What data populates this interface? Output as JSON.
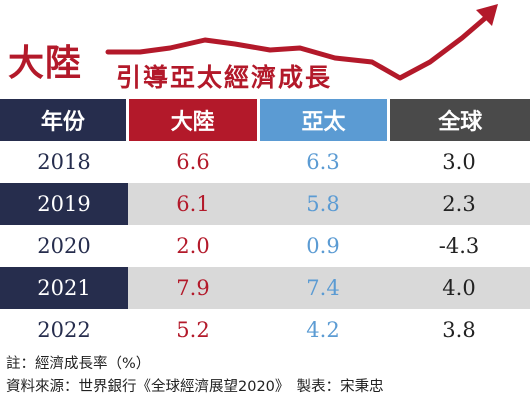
{
  "header": {
    "title_main": "大陸",
    "title_sub": "引導亞太經濟成長",
    "accent_color": "#b3192a",
    "arrow_icon": "trend-up-arrow-icon"
  },
  "chart_data": {
    "type": "table",
    "columns": [
      "年份",
      "大陸",
      "亞太",
      "全球"
    ],
    "column_colors": [
      "#262d4d",
      "#b3192a",
      "#5b9bd3",
      "#4a4a4a"
    ],
    "rows": [
      [
        "2018",
        "6.6",
        "6.3",
        "3.0"
      ],
      [
        "2019",
        "6.1",
        "5.8",
        "2.3"
      ],
      [
        "2020",
        "2.0",
        "0.9",
        "-4.3"
      ],
      [
        "2021",
        "7.9",
        "7.4",
        "4.0"
      ],
      [
        "2022",
        "5.2",
        "4.2",
        "3.8"
      ]
    ]
  },
  "footnotes": {
    "note": "註：經濟成長率（%）",
    "source": "資料來源：世界銀行《全球經濟展望2020》　製表：宋秉忠"
  }
}
